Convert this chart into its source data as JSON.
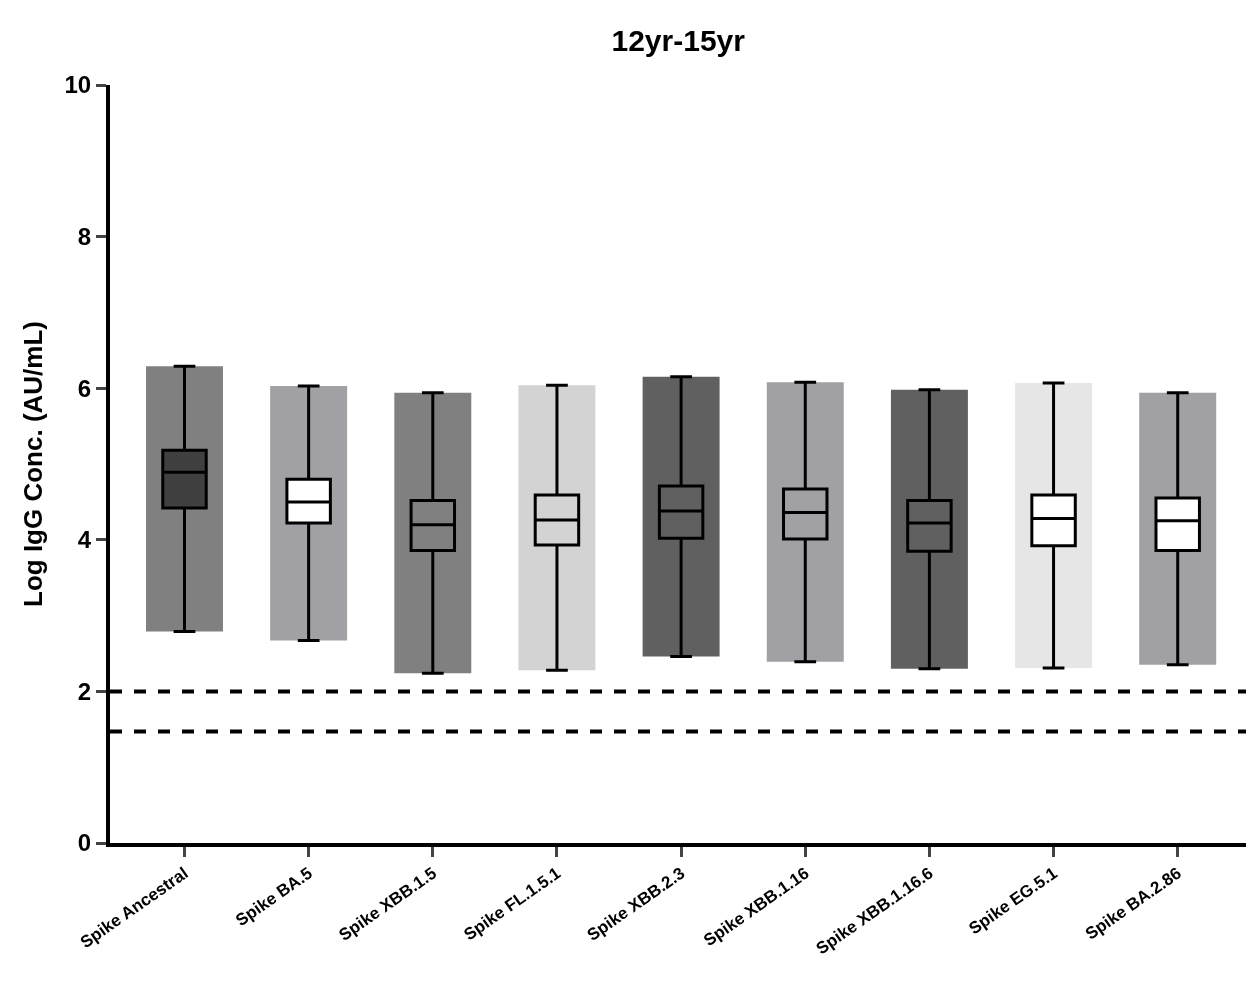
{
  "chart_data": {
    "type": "box",
    "title": "12yr-15yr",
    "ylabel": "Log IgG Conc. (AU/mL)",
    "categories": [
      "Spike Ancestral",
      "Spike BA.5",
      "Spike XBB.1.5",
      "Spike FL.1.5.1",
      "Spike XBB.2.3",
      "Spike XBB.1.16",
      "Spike XBB.1.16.6",
      "Spike EG.5.1",
      "Spike BA.2.86"
    ],
    "series": [
      {
        "type": "bar",
        "colors": [
          "#808080",
          "#a0a0a5",
          "#808080",
          "#d3d3d3",
          "#606060",
          "#a0a0a5",
          "#606060",
          "#e6e6e6",
          "#a0a0a5"
        ],
        "base": [
          2.79,
          2.67,
          2.24,
          2.28,
          2.46,
          2.39,
          2.3,
          2.31,
          2.35
        ],
        "values": [
          3.5,
          3.36,
          3.7,
          3.76,
          3.69,
          3.69,
          3.68,
          3.76,
          3.59
        ]
      },
      {
        "color": "#000000",
        "colors": [
          "#404040",
          "#ffffff",
          "#808080",
          "#d3d3d3",
          "#606060",
          "#a0a0a5",
          "#606060",
          "#ffffff",
          "#ffffff"
        ],
        "boxes": [
          {
            "low": 2.79,
            "q1": 4.42,
            "median": 4.89,
            "q3": 5.18,
            "high": 6.29
          },
          {
            "low": 2.67,
            "q1": 4.22,
            "median": 4.5,
            "q3": 4.8,
            "high": 6.03
          },
          {
            "low": 2.24,
            "q1": 3.86,
            "median": 4.2,
            "q3": 4.52,
            "high": 5.94
          },
          {
            "low": 2.28,
            "q1": 3.93,
            "median": 4.26,
            "q3": 4.59,
            "high": 6.04
          },
          {
            "low": 2.46,
            "q1": 4.02,
            "median": 4.38,
            "q3": 4.71,
            "high": 6.15
          },
          {
            "low": 2.39,
            "q1": 4.01,
            "median": 4.36,
            "q3": 4.67,
            "high": 6.08
          },
          {
            "low": 2.3,
            "q1": 3.85,
            "median": 4.22,
            "q3": 4.52,
            "high": 5.98
          },
          {
            "low": 2.31,
            "q1": 3.92,
            "median": 4.28,
            "q3": 4.59,
            "high": 6.07
          },
          {
            "low": 2.35,
            "q1": 3.86,
            "median": 4.25,
            "q3": 4.55,
            "high": 5.94
          }
        ]
      }
    ],
    "ylim": [
      0,
      10
    ],
    "yticks": [
      0,
      2,
      4,
      6,
      8,
      10
    ],
    "ref_lines": [
      {
        "axis": "y",
        "value": 2,
        "color": "#000000",
        "line_style": "dashed"
      },
      {
        "axis": "y",
        "value": 1.47,
        "color": "#000000",
        "line_style": "dashed"
      }
    ]
  }
}
